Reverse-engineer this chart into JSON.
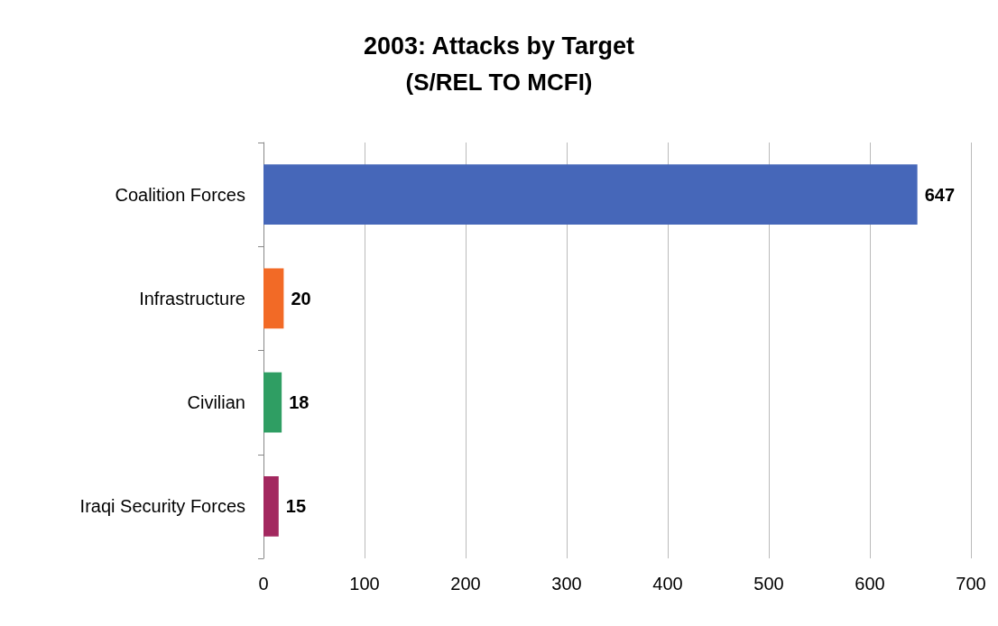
{
  "chart_data": {
    "type": "bar",
    "orientation": "horizontal",
    "title": "2003: Attacks by Target",
    "subtitle": "(S/REL TO MCFI)",
    "categories": [
      "Coalition Forces",
      "Infrastructure",
      "Civilian",
      "Iraqi Security Forces"
    ],
    "values": [
      647,
      20,
      18,
      15
    ],
    "colors": [
      "#4667b9",
      "#f26a26",
      "#2f9e63",
      "#a3285f"
    ],
    "xlim": [
      0,
      700
    ],
    "xticks": [
      0,
      100,
      200,
      300,
      400,
      500,
      600,
      700
    ],
    "grid": "x",
    "data_labels": true
  }
}
